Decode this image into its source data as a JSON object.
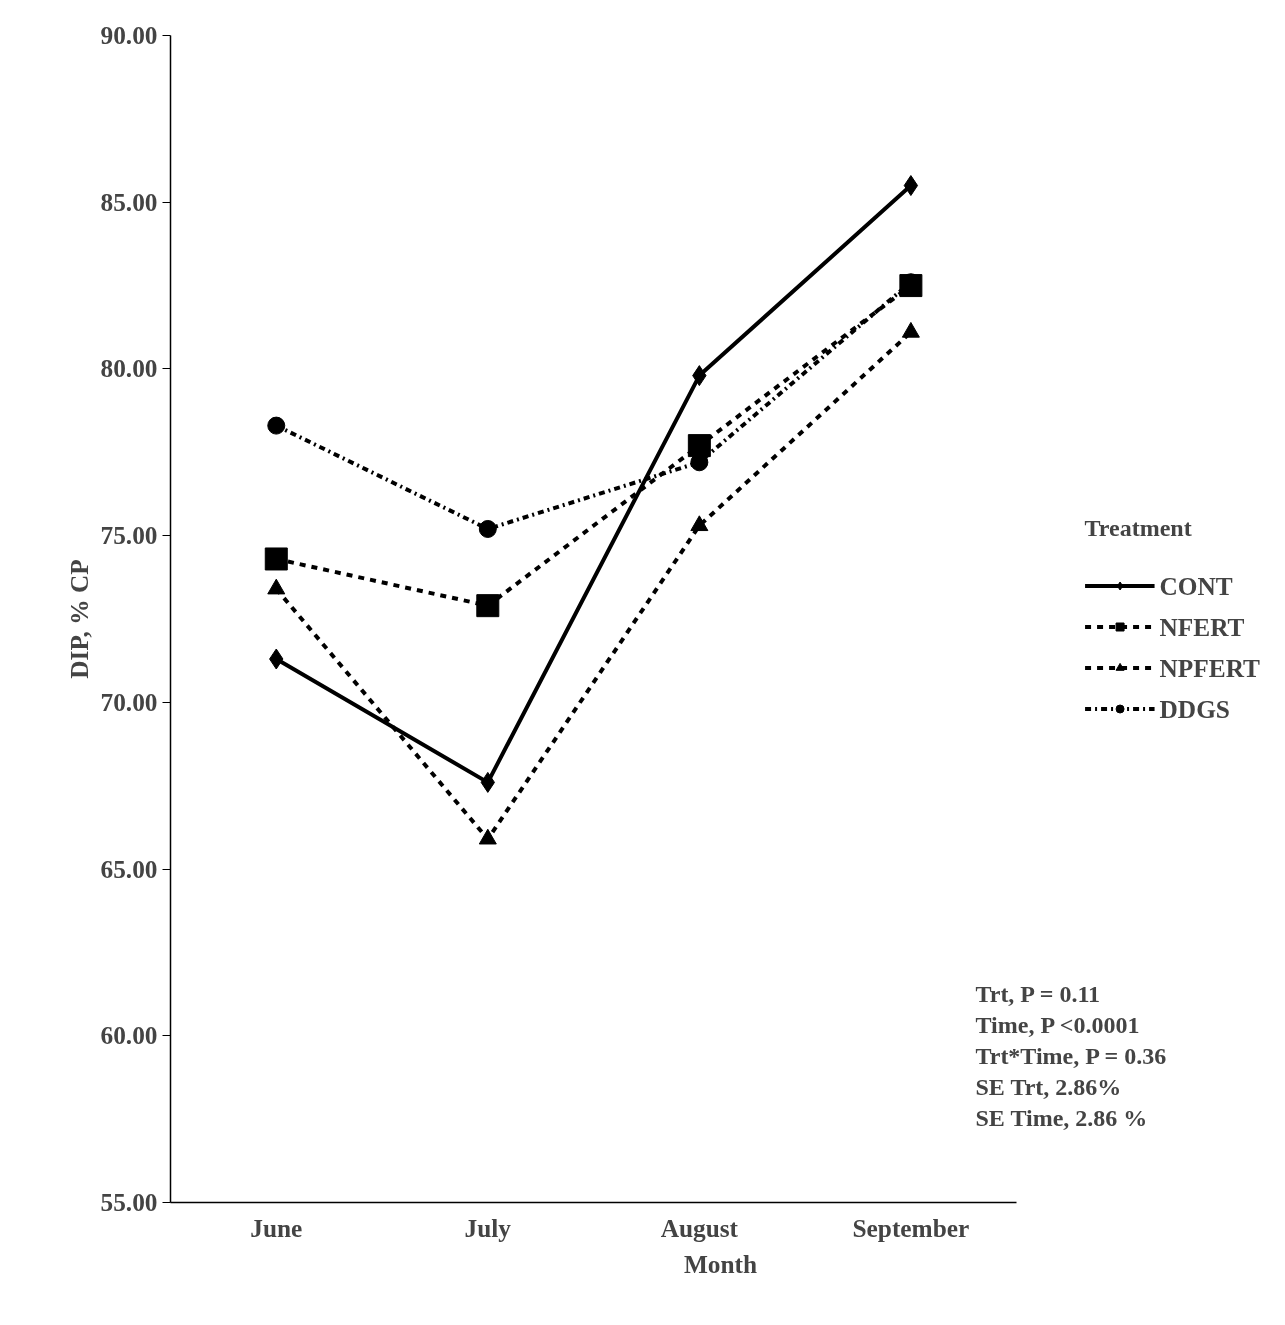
{
  "chart_data": {
    "type": "line",
    "xlabel": "Month",
    "ylabel": "DIP, % CP",
    "legend_title": "Treatment",
    "categories": [
      "June",
      "July",
      "August",
      "September"
    ],
    "series": [
      {
        "name": "CONT",
        "color": "#000000",
        "marker": "diamond",
        "line_style": "solid",
        "values": [
          71.3,
          67.6,
          79.8,
          85.5
        ]
      },
      {
        "name": "NFERT",
        "color": "#000000",
        "marker": "square",
        "line_style": "dashed",
        "values": [
          74.3,
          72.9,
          77.7,
          82.5
        ]
      },
      {
        "name": "NPFERT",
        "color": "#000000",
        "marker": "triangle",
        "line_style": "dashed",
        "values": [
          73.4,
          65.9,
          75.3,
          81.1
        ]
      },
      {
        "name": "DDGS",
        "color": "#000000",
        "marker": "circle",
        "line_style": "dashdot",
        "values": [
          78.3,
          75.2,
          77.2,
          82.6
        ]
      }
    ],
    "ylim": [
      55,
      90
    ],
    "yticks": [
      {
        "value": 55,
        "label": "55.00"
      },
      {
        "value": 60,
        "label": "60.00"
      },
      {
        "value": 65,
        "label": "65.00"
      },
      {
        "value": 70,
        "label": "70.00"
      },
      {
        "value": 75,
        "label": "75.00"
      },
      {
        "value": 80,
        "label": "80.00"
      },
      {
        "value": 85,
        "label": "85.00"
      },
      {
        "value": 90,
        "label": "90.00"
      }
    ],
    "legend": "right",
    "grid": false,
    "annotations": [
      "Trt, P = 0.11",
      "Time, P <0.0001",
      "Trt*Time, P = 0.36",
      "SE Trt, 2.86%",
      "SE Time, 2.86 %"
    ]
  }
}
